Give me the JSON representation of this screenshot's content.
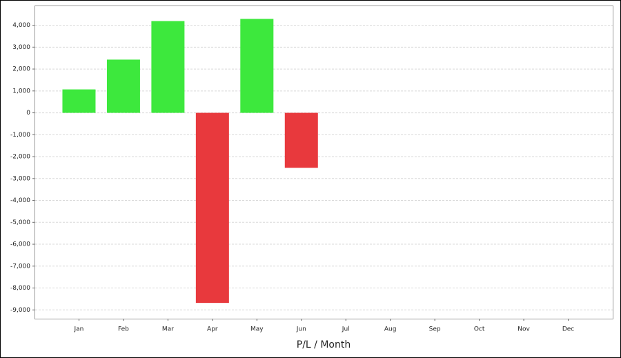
{
  "chart_data": {
    "type": "bar",
    "x_label": "P/L / Month",
    "categories": [
      "Jan",
      "Feb",
      "Mar",
      "Apr",
      "May",
      "Jun",
      "Jul",
      "Aug",
      "Sep",
      "Oct",
      "Nov",
      "Dec"
    ],
    "values": [
      1070,
      2430,
      4190,
      -8680,
      4290,
      -2510,
      null,
      null,
      null,
      null,
      null,
      null
    ],
    "positive_color": "#3de83d",
    "negative_color": "#e8393d",
    "ylim": [
      -9400,
      4900
    ],
    "yticks": [
      {
        "value": 4000,
        "label": "4,000"
      },
      {
        "value": 3000,
        "label": "3,000"
      },
      {
        "value": 2000,
        "label": "2,000"
      },
      {
        "value": 1000,
        "label": "1,000"
      },
      0,
      {
        "value": -1000,
        "label": "-1,000"
      },
      {
        "value": -2000,
        "label": "-2,000"
      },
      {
        "value": -3000,
        "label": "-3,000"
      },
      {
        "value": -4000,
        "label": "-4,000"
      },
      {
        "value": -5000,
        "label": "-5,000"
      },
      {
        "value": -6000,
        "label": "-6,000"
      },
      {
        "value": -7000,
        "label": "-7,000"
      },
      {
        "value": -8000,
        "label": "-8,000"
      },
      {
        "value": -9000,
        "label": "-9,000"
      }
    ],
    "grid": true
  }
}
